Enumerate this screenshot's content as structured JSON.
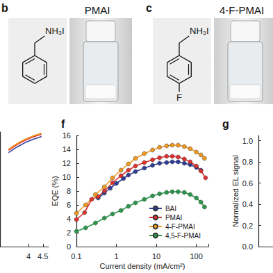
{
  "chart_data": [
    {
      "type": "line",
      "xlim": [
        3,
        4.7
      ],
      "xticks": [
        4,
        4.5
      ],
      "ylim": [
        0,
        1
      ],
      "tick_labels": "x",
      "grid": false,
      "marker": "none",
      "line_style": "solid",
      "series": [
        {
          "color": "#2e3d98",
          "x": [
            3.3,
            3.6,
            3.9,
            4.2,
            4.45
          ],
          "values": [
            0.82,
            0.87,
            0.91,
            0.94,
            0.96
          ]
        },
        {
          "color": "#e0302d",
          "x": [
            3.3,
            3.6,
            3.9,
            4.2,
            4.45
          ],
          "values": [
            0.84,
            0.89,
            0.93,
            0.96,
            0.98
          ]
        },
        {
          "color": "#f29a1e",
          "x": [
            3.3,
            3.6,
            3.9,
            4.2,
            4.45
          ],
          "values": [
            0.85,
            0.9,
            0.94,
            0.97,
            0.99
          ]
        }
      ]
    },
    {
      "type": "line",
      "title": "f",
      "log": "x",
      "grid": false,
      "legend": "lower right",
      "marker": "circle",
      "line_style": "solid",
      "xlabel": "Current density (mA/cm²)",
      "ylabel": "EQE (%)",
      "xlim": [
        0.1,
        200
      ],
      "xticks": [
        0.1,
        1,
        10,
        100
      ],
      "ylim": [
        0,
        16
      ],
      "yticks": [
        0,
        2,
        4,
        6,
        8,
        10,
        12,
        14,
        16
      ],
      "series": [
        {
          "name": "BAI",
          "color": "#2e3d98",
          "x": [
            0.35,
            0.5,
            0.7,
            1,
            1.5,
            2,
            3,
            5,
            8,
            12,
            18,
            25,
            35,
            50,
            70,
            100,
            130
          ],
          "values": [
            7,
            7.7,
            8.4,
            9.1,
            9.8,
            10.3,
            10.8,
            11.3,
            11.7,
            12,
            12.1,
            12.2,
            12.2,
            12,
            11.8,
            11.4,
            11
          ]
        },
        {
          "name": "PMAI",
          "color": "#e0302d",
          "x": [
            0.1,
            0.16,
            0.24,
            0.35,
            0.5,
            0.8,
            1.3,
            2,
            3,
            5,
            8,
            12,
            18,
            25,
            35,
            50,
            70,
            100,
            130,
            170
          ],
          "values": [
            3.9,
            4.9,
            6.8,
            7.2,
            8,
            9.2,
            10.2,
            11,
            11.6,
            12.1,
            12.5,
            12.8,
            13,
            13,
            12.9,
            12.6,
            12.2,
            11.6,
            10.9,
            9.9
          ]
        },
        {
          "name": "4-F-PMAI",
          "color": "#f29a1e",
          "x": [
            0.1,
            0.17,
            0.3,
            0.5,
            0.8,
            1.3,
            2,
            3,
            5,
            8,
            12,
            18,
            25,
            35,
            50,
            70,
            100,
            130,
            160
          ],
          "values": [
            4.8,
            6,
            7.5,
            8.6,
            9.9,
            11,
            11.9,
            12.7,
            13.4,
            13.9,
            14.3,
            14.5,
            14.6,
            14.6,
            14.4,
            14.1,
            13.6,
            13.2,
            12.7
          ]
        },
        {
          "name": "4,5-F-PMAI",
          "color": "#2a9a4a",
          "x": [
            0.1,
            0.17,
            0.3,
            0.5,
            0.8,
            1.3,
            2,
            3,
            5,
            8,
            12,
            18,
            25,
            35,
            50,
            70,
            100,
            130,
            160
          ],
          "values": [
            2.2,
            2.7,
            3.4,
            4.1,
            4.7,
            5.2,
            5.8,
            6.3,
            6.8,
            7.3,
            7.6,
            7.8,
            7.9,
            7.9,
            7.8,
            7.5,
            7,
            6.4,
            5.7
          ]
        }
      ]
    },
    {
      "type": "line",
      "title": "g",
      "ylabel": "Normalized EL signal",
      "grid": false,
      "tick_labels": "y",
      "ylim": [
        0,
        1.05
      ],
      "yticks": [
        {
          "value": 0,
          "label": "0.0"
        },
        {
          "value": 0.2,
          "label": "0.2"
        },
        {
          "value": 0.4,
          "label": "0.4"
        },
        {
          "value": 0.6,
          "label": "0.6"
        },
        {
          "value": 0.8,
          "label": "0.8"
        },
        {
          "value": 1,
          "label": "1.0"
        }
      ],
      "series": []
    }
  ],
  "structures": [
    {
      "panel": "b",
      "title": "PMAI",
      "group": "NH₃I"
    },
    {
      "panel": "c",
      "title": "4-F-PMAI",
      "group": "NH₃I",
      "substituent": "F"
    }
  ]
}
